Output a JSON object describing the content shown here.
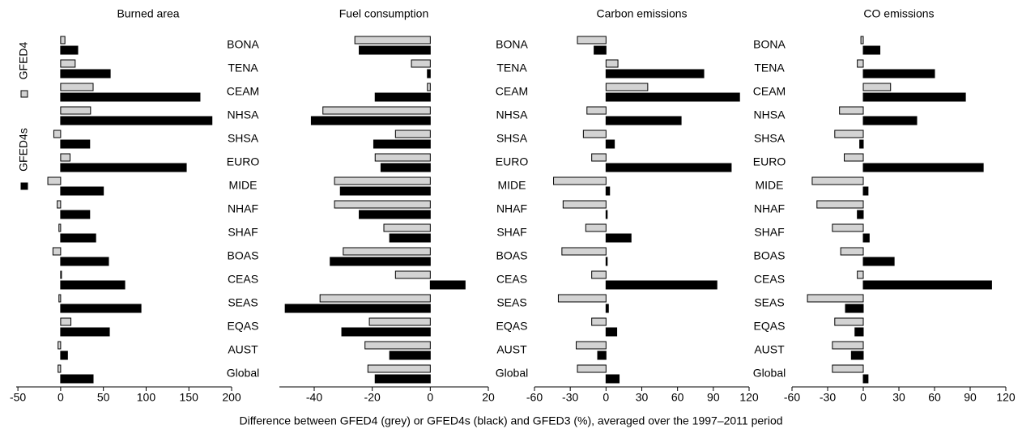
{
  "xlabel": "Difference between GFED4 (grey) or GFED4s (black) and GFED3 (%), averaged over the 1997–2011 period",
  "chart_data": [
    {
      "type": "barh",
      "title": "Burned area",
      "categories": [
        "BONA",
        "TENA",
        "CEAM",
        "NHSA",
        "SHSA",
        "EURO",
        "MIDE",
        "NHAF",
        "SHAF",
        "BOAS",
        "CEAS",
        "SEAS",
        "EQAS",
        "AUST",
        "Global"
      ],
      "series": [
        {
          "name": "GFED4",
          "color": "#d3d3d3",
          "values": [
            5,
            17,
            38,
            35,
            -8,
            11,
            -15,
            -4,
            -2,
            -9,
            1,
            -2,
            12,
            -3,
            -3
          ]
        },
        {
          "name": "GFED4s",
          "color": "#000000",
          "values": [
            20,
            58,
            163,
            177,
            34,
            147,
            50,
            34,
            41,
            56,
            75,
            94,
            57,
            8,
            38
          ]
        }
      ],
      "xlim": [
        -52,
        200
      ],
      "xticks": [
        -50,
        0,
        50,
        100,
        150,
        200
      ]
    },
    {
      "type": "barh",
      "title": "Fuel consumption",
      "categories": [
        "BONA",
        "TENA",
        "CEAM",
        "NHSA",
        "SHSA",
        "EURO",
        "MIDE",
        "NHAF",
        "SHAF",
        "BOAS",
        "CEAS",
        "SEAS",
        "EQAS",
        "AUST",
        "Global"
      ],
      "series": [
        {
          "name": "GFED4",
          "color": "#d3d3d3",
          "values": [
            -26,
            -6.5,
            -1,
            -37,
            -12,
            -19,
            -33,
            -33,
            -16,
            -30,
            -12,
            -38,
            -21,
            -22.5,
            -21.5
          ]
        },
        {
          "name": "GFED4s",
          "color": "#000000",
          "values": [
            -24.5,
            -1,
            -19,
            -41,
            -19.5,
            -17,
            -31,
            -24.5,
            -14,
            -34.5,
            12,
            -50,
            -30.5,
            -14,
            -19
          ]
        }
      ],
      "xlim": [
        -52,
        20
      ],
      "xticks": [
        -40,
        -20,
        0,
        20
      ]
    },
    {
      "type": "barh",
      "title": "Carbon emissions",
      "categories": [
        "BONA",
        "TENA",
        "CEAM",
        "NHSA",
        "SHSA",
        "EURO",
        "MIDE",
        "NHAF",
        "SHAF",
        "BOAS",
        "CEAS",
        "SEAS",
        "EQAS",
        "AUST",
        "Global"
      ],
      "series": [
        {
          "name": "GFED4",
          "color": "#d3d3d3",
          "values": [
            -24,
            10,
            35,
            -16,
            -19,
            -12,
            -44,
            -36,
            -17,
            -37,
            -12,
            -40,
            -12,
            -25,
            -24
          ]
        },
        {
          "name": "GFED4s",
          "color": "#000000",
          "values": [
            -10,
            82,
            112,
            63,
            7,
            105,
            3,
            1,
            21,
            1,
            93,
            2,
            9,
            -7,
            11
          ]
        }
      ],
      "xlim": [
        -60,
        120
      ],
      "xticks": [
        -60,
        -30,
        0,
        30,
        60,
        90,
        120
      ]
    },
    {
      "type": "barh",
      "title": "CO emissions",
      "categories": [
        "BONA",
        "TENA",
        "CEAM",
        "NHSA",
        "SHSA",
        "EURO",
        "MIDE",
        "NHAF",
        "SHAF",
        "BOAS",
        "CEAS",
        "SEAS",
        "EQAS",
        "AUST",
        "Global"
      ],
      "series": [
        {
          "name": "GFED4",
          "color": "#d3d3d3",
          "values": [
            -2,
            -5,
            23,
            -20,
            -24,
            -16,
            -43,
            -39,
            -26,
            -19,
            -5,
            -47,
            -24,
            -26,
            -26
          ]
        },
        {
          "name": "GFED4s",
          "color": "#000000",
          "values": [
            14,
            60,
            86,
            45,
            -3,
            101,
            4,
            -5,
            5,
            26,
            108,
            -15,
            -7,
            -10,
            4
          ]
        }
      ],
      "xlim": [
        -60,
        120
      ],
      "xticks": [
        -60,
        -30,
        0,
        30,
        60,
        90,
        120
      ]
    }
  ]
}
